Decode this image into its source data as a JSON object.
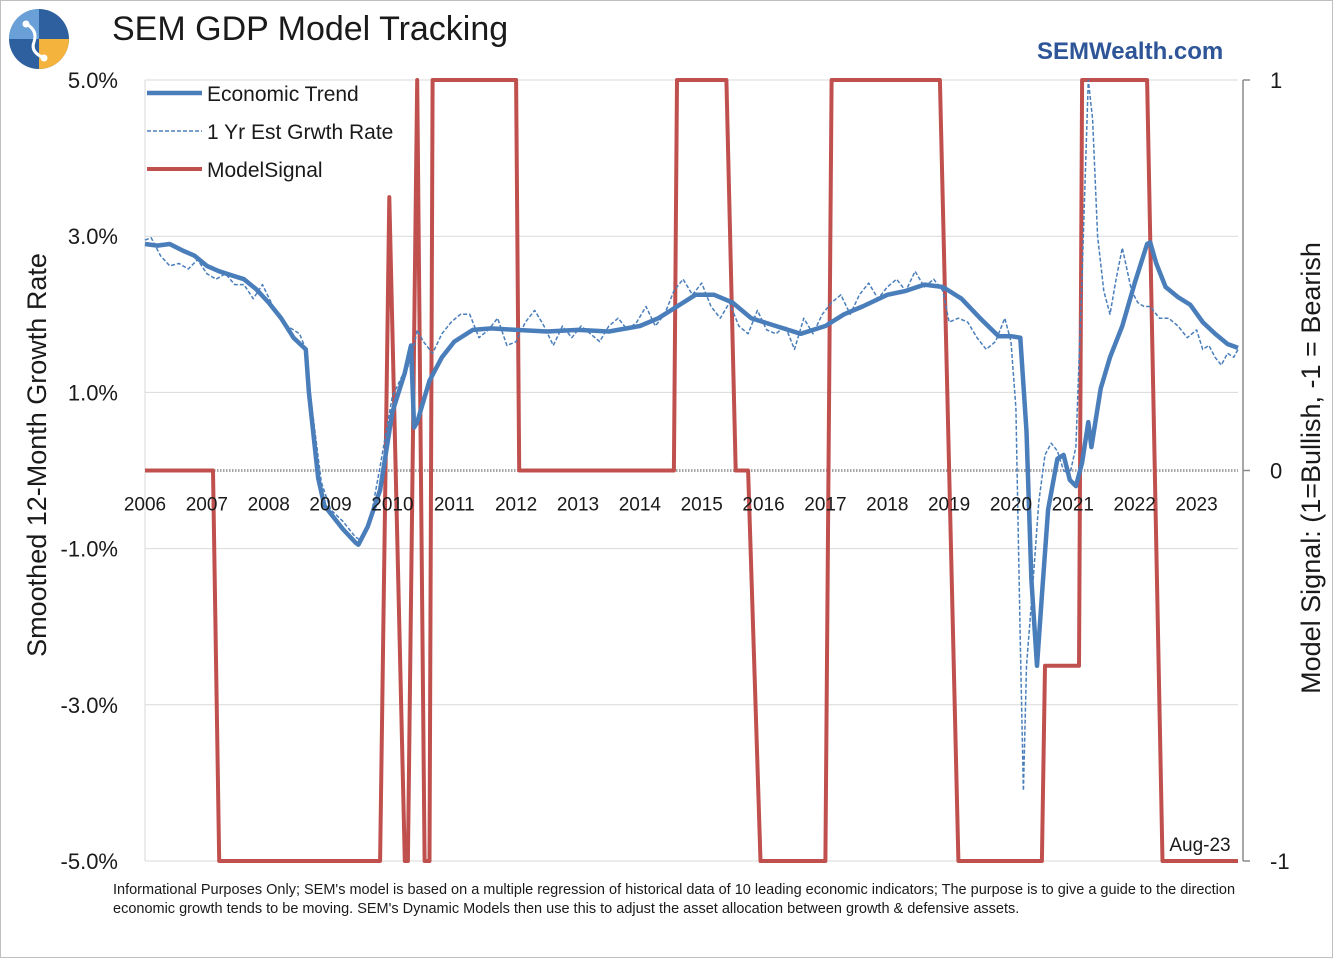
{
  "header": {
    "title": "SEM GDP Model Tracking",
    "site": "SEMWealth.com"
  },
  "footnote": "Informational Purposes Only; SEM's model is based on a multiple regression of historical data of 10 leading economic indicators; The purpose is to give a guide to the direction economic growth tends to be moving. SEM's Dynamic Models then use this to adjust the asset allocation between growth & defensive assets.",
  "colors": {
    "economic_trend": "#4a7ebb",
    "growth_rate": "#4a7ebb",
    "model_signal": "#c0504d",
    "grid": "#d9d9d9",
    "site": "#2e5597"
  },
  "chart_data": {
    "type": "line",
    "title": "SEM GDP Model Tracking",
    "ylabel": "Smoothed 12-Month Growth Rate",
    "y2label": "Model Signal: (1=Bullish, -1 = Bearish",
    "ylim": [
      -5,
      5
    ],
    "y2lim": [
      -1,
      1
    ],
    "yticks": [
      "5.0%",
      "3.0%",
      "1.0%",
      "-1.0%",
      "-3.0%",
      "-5.0%"
    ],
    "y2ticks": [
      "1",
      "0",
      "-1"
    ],
    "xlim": [
      2006.0,
      2023.67
    ],
    "xticks": [
      "2006",
      "2007",
      "2008",
      "2009",
      "2010",
      "2011",
      "2012",
      "2013",
      "2014",
      "2015",
      "2016",
      "2017",
      "2018",
      "2019",
      "2020",
      "2021",
      "2022",
      "2023"
    ],
    "grid": true,
    "legend_position": "top-left",
    "annotation": "Aug-23",
    "series": [
      {
        "name": "Economic Trend",
        "axis": "left",
        "style": "solid-thick",
        "x": [
          2006.0,
          2006.2,
          2006.4,
          2006.6,
          2006.8,
          2007.0,
          2007.2,
          2007.4,
          2007.6,
          2007.8,
          2008.0,
          2008.2,
          2008.4,
          2008.6,
          2008.65,
          2008.8,
          2008.9,
          2009.0,
          2009.2,
          2009.4,
          2009.45,
          2009.6,
          2009.8,
          2010.0,
          2010.2,
          2010.3,
          2010.35,
          2010.4,
          2010.6,
          2010.8,
          2011.0,
          2011.3,
          2011.6,
          2012.0,
          2012.5,
          2013.0,
          2013.5,
          2014.0,
          2014.3,
          2014.6,
          2014.9,
          2015.2,
          2015.5,
          2015.8,
          2016.2,
          2016.6,
          2017.0,
          2017.3,
          2017.6,
          2018.0,
          2018.3,
          2018.6,
          2018.9,
          2019.2,
          2019.5,
          2019.8,
          2020.0,
          2020.15,
          2020.25,
          2020.33,
          2020.42,
          2020.5,
          2020.6,
          2020.75,
          2020.85,
          2020.95,
          2021.05,
          2021.15,
          2021.25,
          2021.3,
          2021.45,
          2021.6,
          2021.8,
          2022.0,
          2022.2,
          2022.25,
          2022.35,
          2022.5,
          2022.7,
          2022.9,
          2023.1,
          2023.3,
          2023.5,
          2023.67
        ],
        "values": [
          2.9,
          2.88,
          2.9,
          2.82,
          2.75,
          2.62,
          2.55,
          2.5,
          2.45,
          2.32,
          2.15,
          1.95,
          1.7,
          1.55,
          1.0,
          -0.1,
          -0.45,
          -0.55,
          -0.75,
          -0.92,
          -0.95,
          -0.72,
          -0.25,
          0.75,
          1.25,
          1.6,
          0.55,
          0.62,
          1.15,
          1.45,
          1.65,
          1.8,
          1.82,
          1.8,
          1.78,
          1.8,
          1.78,
          1.85,
          1.95,
          2.1,
          2.25,
          2.25,
          2.15,
          1.95,
          1.85,
          1.75,
          1.85,
          2.0,
          2.1,
          2.25,
          2.3,
          2.38,
          2.35,
          2.2,
          1.95,
          1.72,
          1.72,
          1.7,
          0.5,
          -1.4,
          -2.5,
          -1.6,
          -0.5,
          0.15,
          0.2,
          -0.12,
          -0.2,
          0.1,
          0.62,
          0.3,
          1.05,
          1.45,
          1.85,
          2.4,
          2.9,
          2.92,
          2.65,
          2.35,
          2.22,
          2.12,
          1.9,
          1.75,
          1.62,
          1.57
        ]
      },
      {
        "name": "1 Yr Est Grwth Rate",
        "axis": "left",
        "style": "dashed-thin",
        "x": [
          2006.0,
          2006.1,
          2006.25,
          2006.4,
          2006.55,
          2006.7,
          2006.85,
          2007.0,
          2007.15,
          2007.3,
          2007.45,
          2007.6,
          2007.75,
          2007.9,
          2008.1,
          2008.3,
          2008.5,
          2008.6,
          2008.7,
          2008.85,
          2009.0,
          2009.2,
          2009.4,
          2009.5,
          2009.65,
          2009.8,
          2009.9,
          2010.0,
          2010.15,
          2010.3,
          2010.4,
          2010.5,
          2010.65,
          2010.8,
          2010.95,
          2011.1,
          2011.25,
          2011.4,
          2011.55,
          2011.7,
          2011.85,
          2012.0,
          2012.15,
          2012.3,
          2012.45,
          2012.6,
          2012.75,
          2012.9,
          2013.05,
          2013.2,
          2013.35,
          2013.5,
          2013.65,
          2013.8,
          2013.95,
          2014.1,
          2014.25,
          2014.4,
          2014.55,
          2014.7,
          2014.85,
          2015.0,
          2015.15,
          2015.3,
          2015.45,
          2015.6,
          2015.75,
          2015.9,
          2016.05,
          2016.2,
          2016.35,
          2016.5,
          2016.65,
          2016.8,
          2016.95,
          2017.1,
          2017.25,
          2017.4,
          2017.55,
          2017.7,
          2017.85,
          2018.0,
          2018.15,
          2018.3,
          2018.45,
          2018.6,
          2018.75,
          2018.9,
          2019.0,
          2019.15,
          2019.3,
          2019.45,
          2019.6,
          2019.75,
          2019.9,
          2020.0,
          2020.08,
          2020.15,
          2020.2,
          2020.25,
          2020.35,
          2020.45,
          2020.55,
          2020.65,
          2020.75,
          2020.85,
          2020.95,
          2021.05,
          2021.15,
          2021.25,
          2021.32,
          2021.4,
          2021.5,
          2021.6,
          2021.7,
          2021.8,
          2021.95,
          2022.05,
          2022.15,
          2022.25,
          2022.4,
          2022.55,
          2022.7,
          2022.85,
          2023.0,
          2023.1,
          2023.2,
          2023.3,
          2023.4,
          2023.5,
          2023.6,
          2023.67
        ],
        "values": [
          2.95,
          2.98,
          2.75,
          2.62,
          2.65,
          2.58,
          2.7,
          2.52,
          2.45,
          2.52,
          2.38,
          2.38,
          2.2,
          2.38,
          2.05,
          1.85,
          1.75,
          1.55,
          0.8,
          -0.15,
          -0.5,
          -0.65,
          -0.85,
          -0.9,
          -0.6,
          0.05,
          0.5,
          0.95,
          1.2,
          1.4,
          1.8,
          1.65,
          1.5,
          1.75,
          1.9,
          2.0,
          2.0,
          1.7,
          1.8,
          1.95,
          1.6,
          1.65,
          1.9,
          2.05,
          1.85,
          1.6,
          1.85,
          1.7,
          1.85,
          1.75,
          1.65,
          1.85,
          1.95,
          1.8,
          1.9,
          2.1,
          1.85,
          2.0,
          2.3,
          2.45,
          2.25,
          2.4,
          2.1,
          1.95,
          2.15,
          1.85,
          1.75,
          2.05,
          1.8,
          1.75,
          1.85,
          1.55,
          1.95,
          1.75,
          2.0,
          2.15,
          2.25,
          2.0,
          2.25,
          2.4,
          2.2,
          2.35,
          2.45,
          2.3,
          2.55,
          2.35,
          2.45,
          2.3,
          1.9,
          1.95,
          1.9,
          1.7,
          1.55,
          1.65,
          1.95,
          1.65,
          0.8,
          -2.2,
          -4.1,
          -2.5,
          -1.5,
          -0.4,
          0.2,
          0.35,
          0.25,
          0.0,
          -0.05,
          0.3,
          2.5,
          5.0,
          4.5,
          3.0,
          2.3,
          2.0,
          2.45,
          2.85,
          2.3,
          2.15,
          2.1,
          2.1,
          1.95,
          1.95,
          1.85,
          1.7,
          1.8,
          1.55,
          1.6,
          1.45,
          1.35,
          1.5,
          1.45,
          1.55
        ]
      },
      {
        "name": "ModelSignal",
        "axis": "right",
        "style": "solid-red",
        "x": [
          2006.0,
          2007.1,
          2007.2,
          2009.8,
          2009.95,
          2010.2,
          2010.25,
          2010.4,
          2010.52,
          2010.55,
          2010.6,
          2010.65,
          2010.8,
          2012.0,
          2012.05,
          2014.55,
          2014.6,
          2015.4,
          2015.55,
          2015.75,
          2015.95,
          2017.0,
          2017.05,
          2017.1,
          2018.85,
          2019.15,
          2020.5,
          2020.55,
          2021.1,
          2021.15,
          2021.2,
          2022.2,
          2022.45,
          2023.67
        ],
        "values": [
          0,
          0,
          -1,
          -1,
          0.7,
          -1,
          -1,
          1,
          -1,
          -1,
          -1,
          1,
          1,
          1,
          0,
          0,
          1,
          1,
          0,
          0,
          -1,
          -1,
          0,
          1,
          1,
          -1,
          -1,
          -0.5,
          -0.5,
          1,
          1,
          1,
          -1,
          -1
        ]
      }
    ]
  }
}
